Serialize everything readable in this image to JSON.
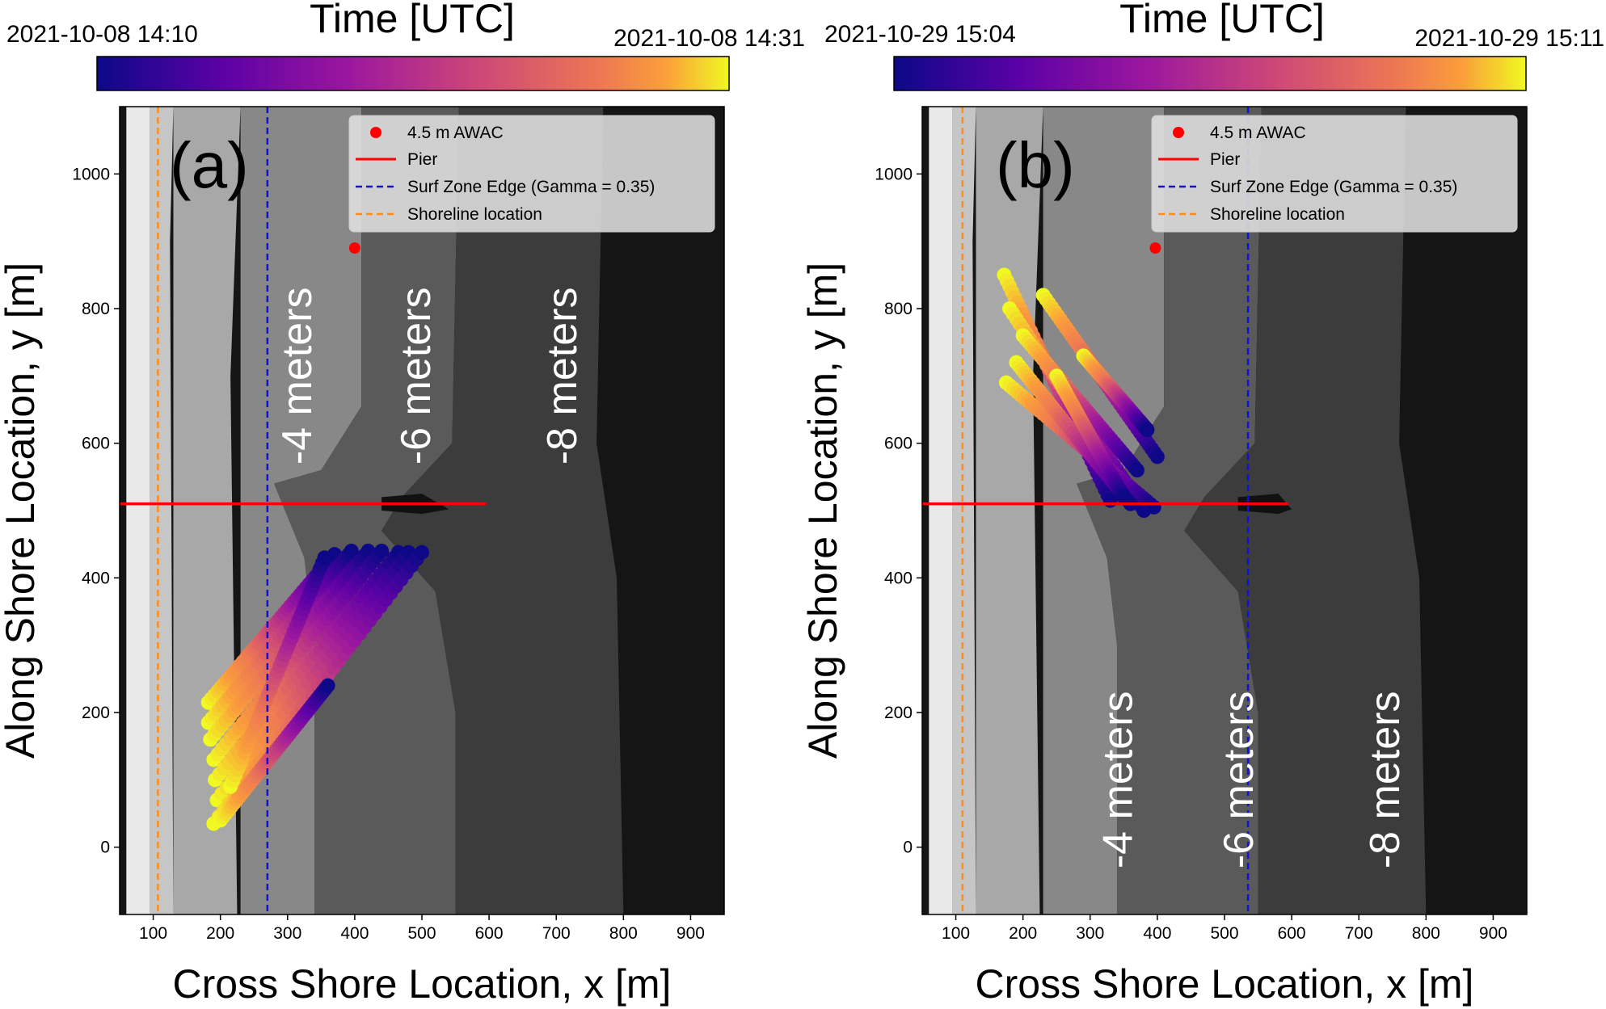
{
  "chart_data": [
    {
      "type": "scatter",
      "panel_label": "(a)",
      "xlabel": "Cross Shore Location, x [m]",
      "ylabel": "Along Shore Location, y [m]",
      "xlim": [
        50,
        950
      ],
      "ylim": [
        -100,
        1100
      ],
      "xticks": [
        100,
        200,
        300,
        400,
        500,
        600,
        700,
        800,
        900
      ],
      "yticks": [
        0,
        200,
        400,
        600,
        800,
        1000
      ],
      "colorbar": {
        "title": "Time [UTC]",
        "min_label": "2021-10-08 14:10",
        "max_label": "2021-10-08 14:31",
        "colormap": "plasma"
      },
      "legend": {
        "placement": "top-right",
        "entries": [
          "4.5 m AWAC",
          "Pier",
          "Surf Zone Edge (Gamma = 0.35)",
          "Shoreline location"
        ]
      },
      "depth_labels": [
        {
          "text": "-4 meters",
          "x": 335,
          "y": 700
        },
        {
          "text": "-6 meters",
          "x": 512,
          "y": 700
        },
        {
          "text": "-8 meters",
          "x": 730,
          "y": 700
        }
      ],
      "awac": {
        "x": 400,
        "y": 890,
        "color": "#ff0000"
      },
      "pier": {
        "x_start": 50,
        "x_end": 595,
        "y": 510,
        "color": "#ff0000"
      },
      "surf_zone_edge_x": 270,
      "shoreline_x": 107,
      "depth_contours": [
        [
          [
            60,
            1100
          ],
          [
            60,
            -100
          ],
          [
            95,
            -100
          ],
          [
            95,
            1100
          ]
        ],
        [
          [
            95,
            1100
          ],
          [
            95,
            -100
          ],
          [
            130,
            -100
          ],
          [
            125,
            900
          ],
          [
            130,
            1100
          ]
        ],
        [
          [
            130,
            1100
          ],
          [
            130,
            -100
          ],
          [
            225,
            -100
          ],
          [
            215,
            700
          ],
          [
            230,
            1100
          ]
        ],
        [
          [
            230,
            1100
          ],
          [
            230,
            -100
          ],
          [
            340,
            -100
          ],
          [
            340,
            300
          ],
          [
            325,
            430
          ],
          [
            280,
            540
          ],
          [
            350,
            560
          ],
          [
            410,
            655
          ],
          [
            410,
            1100
          ]
        ],
        [
          [
            410,
            1100
          ],
          [
            410,
            655
          ],
          [
            350,
            560
          ],
          [
            280,
            540
          ],
          [
            325,
            430
          ],
          [
            340,
            300
          ],
          [
            340,
            -100
          ],
          [
            550,
            -100
          ],
          [
            550,
            200
          ],
          [
            520,
            380
          ],
          [
            440,
            470
          ],
          [
            470,
            520
          ],
          [
            545,
            600
          ],
          [
            555,
            1100
          ]
        ],
        [
          [
            555,
            1100
          ],
          [
            545,
            600
          ],
          [
            470,
            520
          ],
          [
            440,
            470
          ],
          [
            520,
            380
          ],
          [
            550,
            200
          ],
          [
            550,
            -100
          ],
          [
            800,
            -100
          ],
          [
            790,
            400
          ],
          [
            760,
            600
          ],
          [
            770,
            1100
          ]
        ],
        [
          [
            440,
            500
          ],
          [
            500,
            495
          ],
          [
            540,
            502
          ],
          [
            500,
            525
          ],
          [
            440,
            520
          ]
        ]
      ],
      "tracks": [
        {
          "start": [
            182,
            215
          ],
          "end": [
            370,
            435
          ]
        },
        {
          "start": [
            182,
            185
          ],
          "end": [
            395,
            440
          ]
        },
        {
          "start": [
            185,
            160
          ],
          "end": [
            420,
            440
          ]
        },
        {
          "start": [
            190,
            130
          ],
          "end": [
            440,
            440
          ]
        },
        {
          "start": [
            192,
            100
          ],
          "end": [
            465,
            438
          ]
        },
        {
          "start": [
            195,
            70
          ],
          "end": [
            480,
            438
          ]
        },
        {
          "start": [
            190,
            35
          ],
          "end": [
            500,
            438
          ]
        },
        {
          "start": [
            200,
            40
          ],
          "end": [
            360,
            240
          ]
        },
        {
          "start": [
            215,
            90
          ],
          "end": [
            355,
            430
          ]
        }
      ]
    },
    {
      "type": "scatter",
      "panel_label": "(b)",
      "xlabel": "Cross Shore Location, x [m]",
      "ylabel": "Along Shore Location, y [m]",
      "xlim": [
        50,
        950
      ],
      "ylim": [
        -100,
        1100
      ],
      "xticks": [
        100,
        200,
        300,
        400,
        500,
        600,
        700,
        800,
        900
      ],
      "yticks": [
        0,
        200,
        400,
        600,
        800,
        1000
      ],
      "colorbar": {
        "title": "Time [UTC]",
        "min_label": "2021-10-29 15:04",
        "max_label": "2021-10-29 15:11",
        "colormap": "plasma"
      },
      "legend": {
        "placement": "top-right",
        "entries": [
          "4.5 m AWAC",
          "Pier",
          "Surf Zone Edge (Gamma = 0.35)",
          "Shoreline location"
        ]
      },
      "depth_labels": [
        {
          "text": "-4 meters",
          "x": 362,
          "y": 100
        },
        {
          "text": "-6 meters",
          "x": 542,
          "y": 100
        },
        {
          "text": "-8 meters",
          "x": 760,
          "y": 100
        }
      ],
      "awac": {
        "x": 397,
        "y": 890,
        "color": "#ff0000"
      },
      "pier": {
        "x_start": 50,
        "x_end": 595,
        "y": 510,
        "color": "#ff0000"
      },
      "surf_zone_edge_x": 535,
      "shoreline_x": 110,
      "depth_contours": [
        [
          [
            60,
            1100
          ],
          [
            60,
            -100
          ],
          [
            95,
            -100
          ],
          [
            95,
            1100
          ]
        ],
        [
          [
            95,
            1100
          ],
          [
            95,
            -100
          ],
          [
            130,
            -100
          ],
          [
            125,
            900
          ],
          [
            130,
            1100
          ]
        ],
        [
          [
            130,
            1100
          ],
          [
            130,
            -100
          ],
          [
            225,
            -100
          ],
          [
            215,
            700
          ],
          [
            230,
            1100
          ]
        ],
        [
          [
            230,
            1100
          ],
          [
            230,
            -100
          ],
          [
            340,
            -100
          ],
          [
            340,
            300
          ],
          [
            325,
            430
          ],
          [
            280,
            540
          ],
          [
            350,
            560
          ],
          [
            410,
            655
          ],
          [
            410,
            1100
          ]
        ],
        [
          [
            410,
            1100
          ],
          [
            410,
            655
          ],
          [
            350,
            560
          ],
          [
            280,
            540
          ],
          [
            325,
            430
          ],
          [
            340,
            300
          ],
          [
            340,
            -100
          ],
          [
            550,
            -100
          ],
          [
            550,
            200
          ],
          [
            520,
            380
          ],
          [
            440,
            470
          ],
          [
            470,
            520
          ],
          [
            545,
            600
          ],
          [
            555,
            1100
          ]
        ],
        [
          [
            555,
            1100
          ],
          [
            545,
            600
          ],
          [
            470,
            520
          ],
          [
            440,
            470
          ],
          [
            520,
            380
          ],
          [
            550,
            200
          ],
          [
            550,
            -100
          ],
          [
            800,
            -100
          ],
          [
            790,
            400
          ],
          [
            760,
            600
          ],
          [
            770,
            1100
          ]
        ],
        [
          [
            520,
            500
          ],
          [
            580,
            495
          ],
          [
            600,
            502
          ],
          [
            580,
            525
          ],
          [
            520,
            520
          ]
        ]
      ],
      "tracks": [
        {
          "start": [
            172,
            850
          ],
          "end": [
            330,
            515
          ]
        },
        {
          "start": [
            180,
            800
          ],
          "end": [
            380,
            500
          ]
        },
        {
          "start": [
            200,
            760
          ],
          "end": [
            370,
            560
          ]
        },
        {
          "start": [
            175,
            690
          ],
          "end": [
            395,
            505
          ]
        },
        {
          "start": [
            190,
            720
          ],
          "end": [
            360,
            510
          ]
        },
        {
          "start": [
            230,
            820
          ],
          "end": [
            400,
            580
          ]
        },
        {
          "start": [
            290,
            730
          ],
          "end": [
            385,
            620
          ]
        },
        {
          "start": [
            250,
            700
          ],
          "end": [
            350,
            520
          ]
        }
      ]
    }
  ]
}
